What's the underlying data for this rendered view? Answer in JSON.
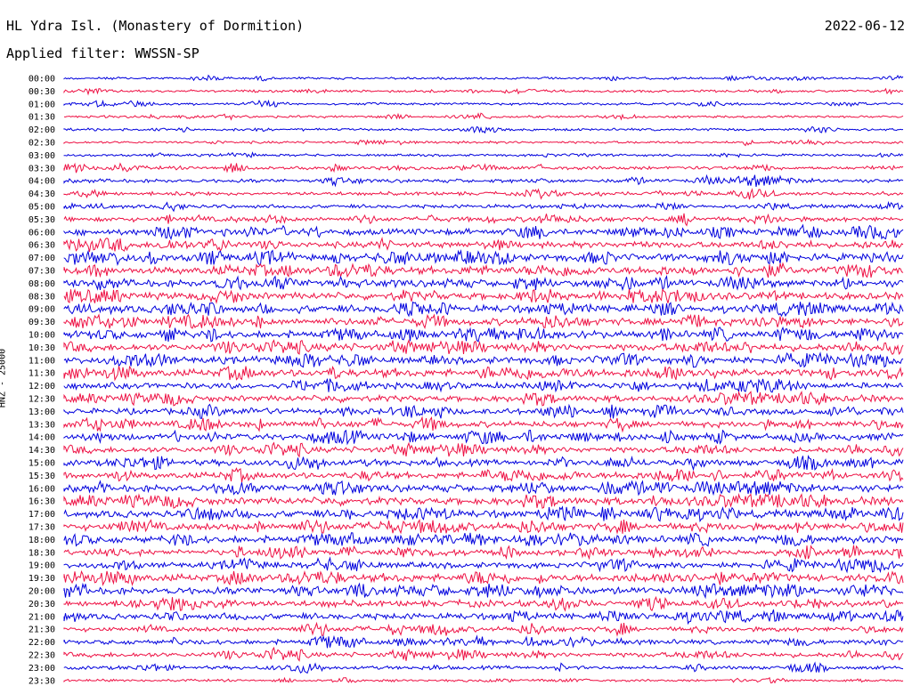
{
  "header": {
    "station": "HL Ydra Isl. (Monastery of Dormition)",
    "date": "2022-06-12",
    "filter": "Applied filter: WWSSN-SP"
  },
  "chart_data": {
    "type": "line",
    "title": "HL Ydra Isl. (Monastery of Dormition)",
    "ylabel": "HNZ - 25000",
    "colors": [
      "#0000dd",
      "#ee1144"
    ],
    "tick_labels": [
      "00:00",
      "00:30",
      "01:00",
      "01:30",
      "02:00",
      "02:30",
      "03:00",
      "03:30",
      "04:00",
      "04:30",
      "05:00",
      "05:30",
      "06:00",
      "06:30",
      "07:00",
      "07:30",
      "08:00",
      "08:30",
      "09:00",
      "09:30",
      "10:00",
      "10:30",
      "11:00",
      "11:30",
      "12:00",
      "12:30",
      "13:00",
      "13:30",
      "14:00",
      "14:30",
      "15:00",
      "15:30",
      "16:00",
      "16:30",
      "17:00",
      "17:30",
      "18:00",
      "18:30",
      "19:00",
      "19:30",
      "20:00",
      "20:30",
      "21:00",
      "21:30",
      "22:00",
      "22:30",
      "23:00",
      "23:30"
    ],
    "activity": [
      1,
      1,
      1,
      1,
      1,
      1,
      1,
      2,
      2,
      2,
      2,
      3,
      4,
      4,
      5,
      5,
      5,
      5,
      5,
      5,
      5,
      5,
      5,
      5,
      4,
      4,
      4,
      4,
      4,
      4,
      4,
      4,
      5,
      5,
      5,
      5,
      5,
      4,
      4,
      5,
      5,
      4,
      4,
      3,
      3,
      3,
      2,
      1
    ],
    "legend": "none",
    "grid": false
  }
}
